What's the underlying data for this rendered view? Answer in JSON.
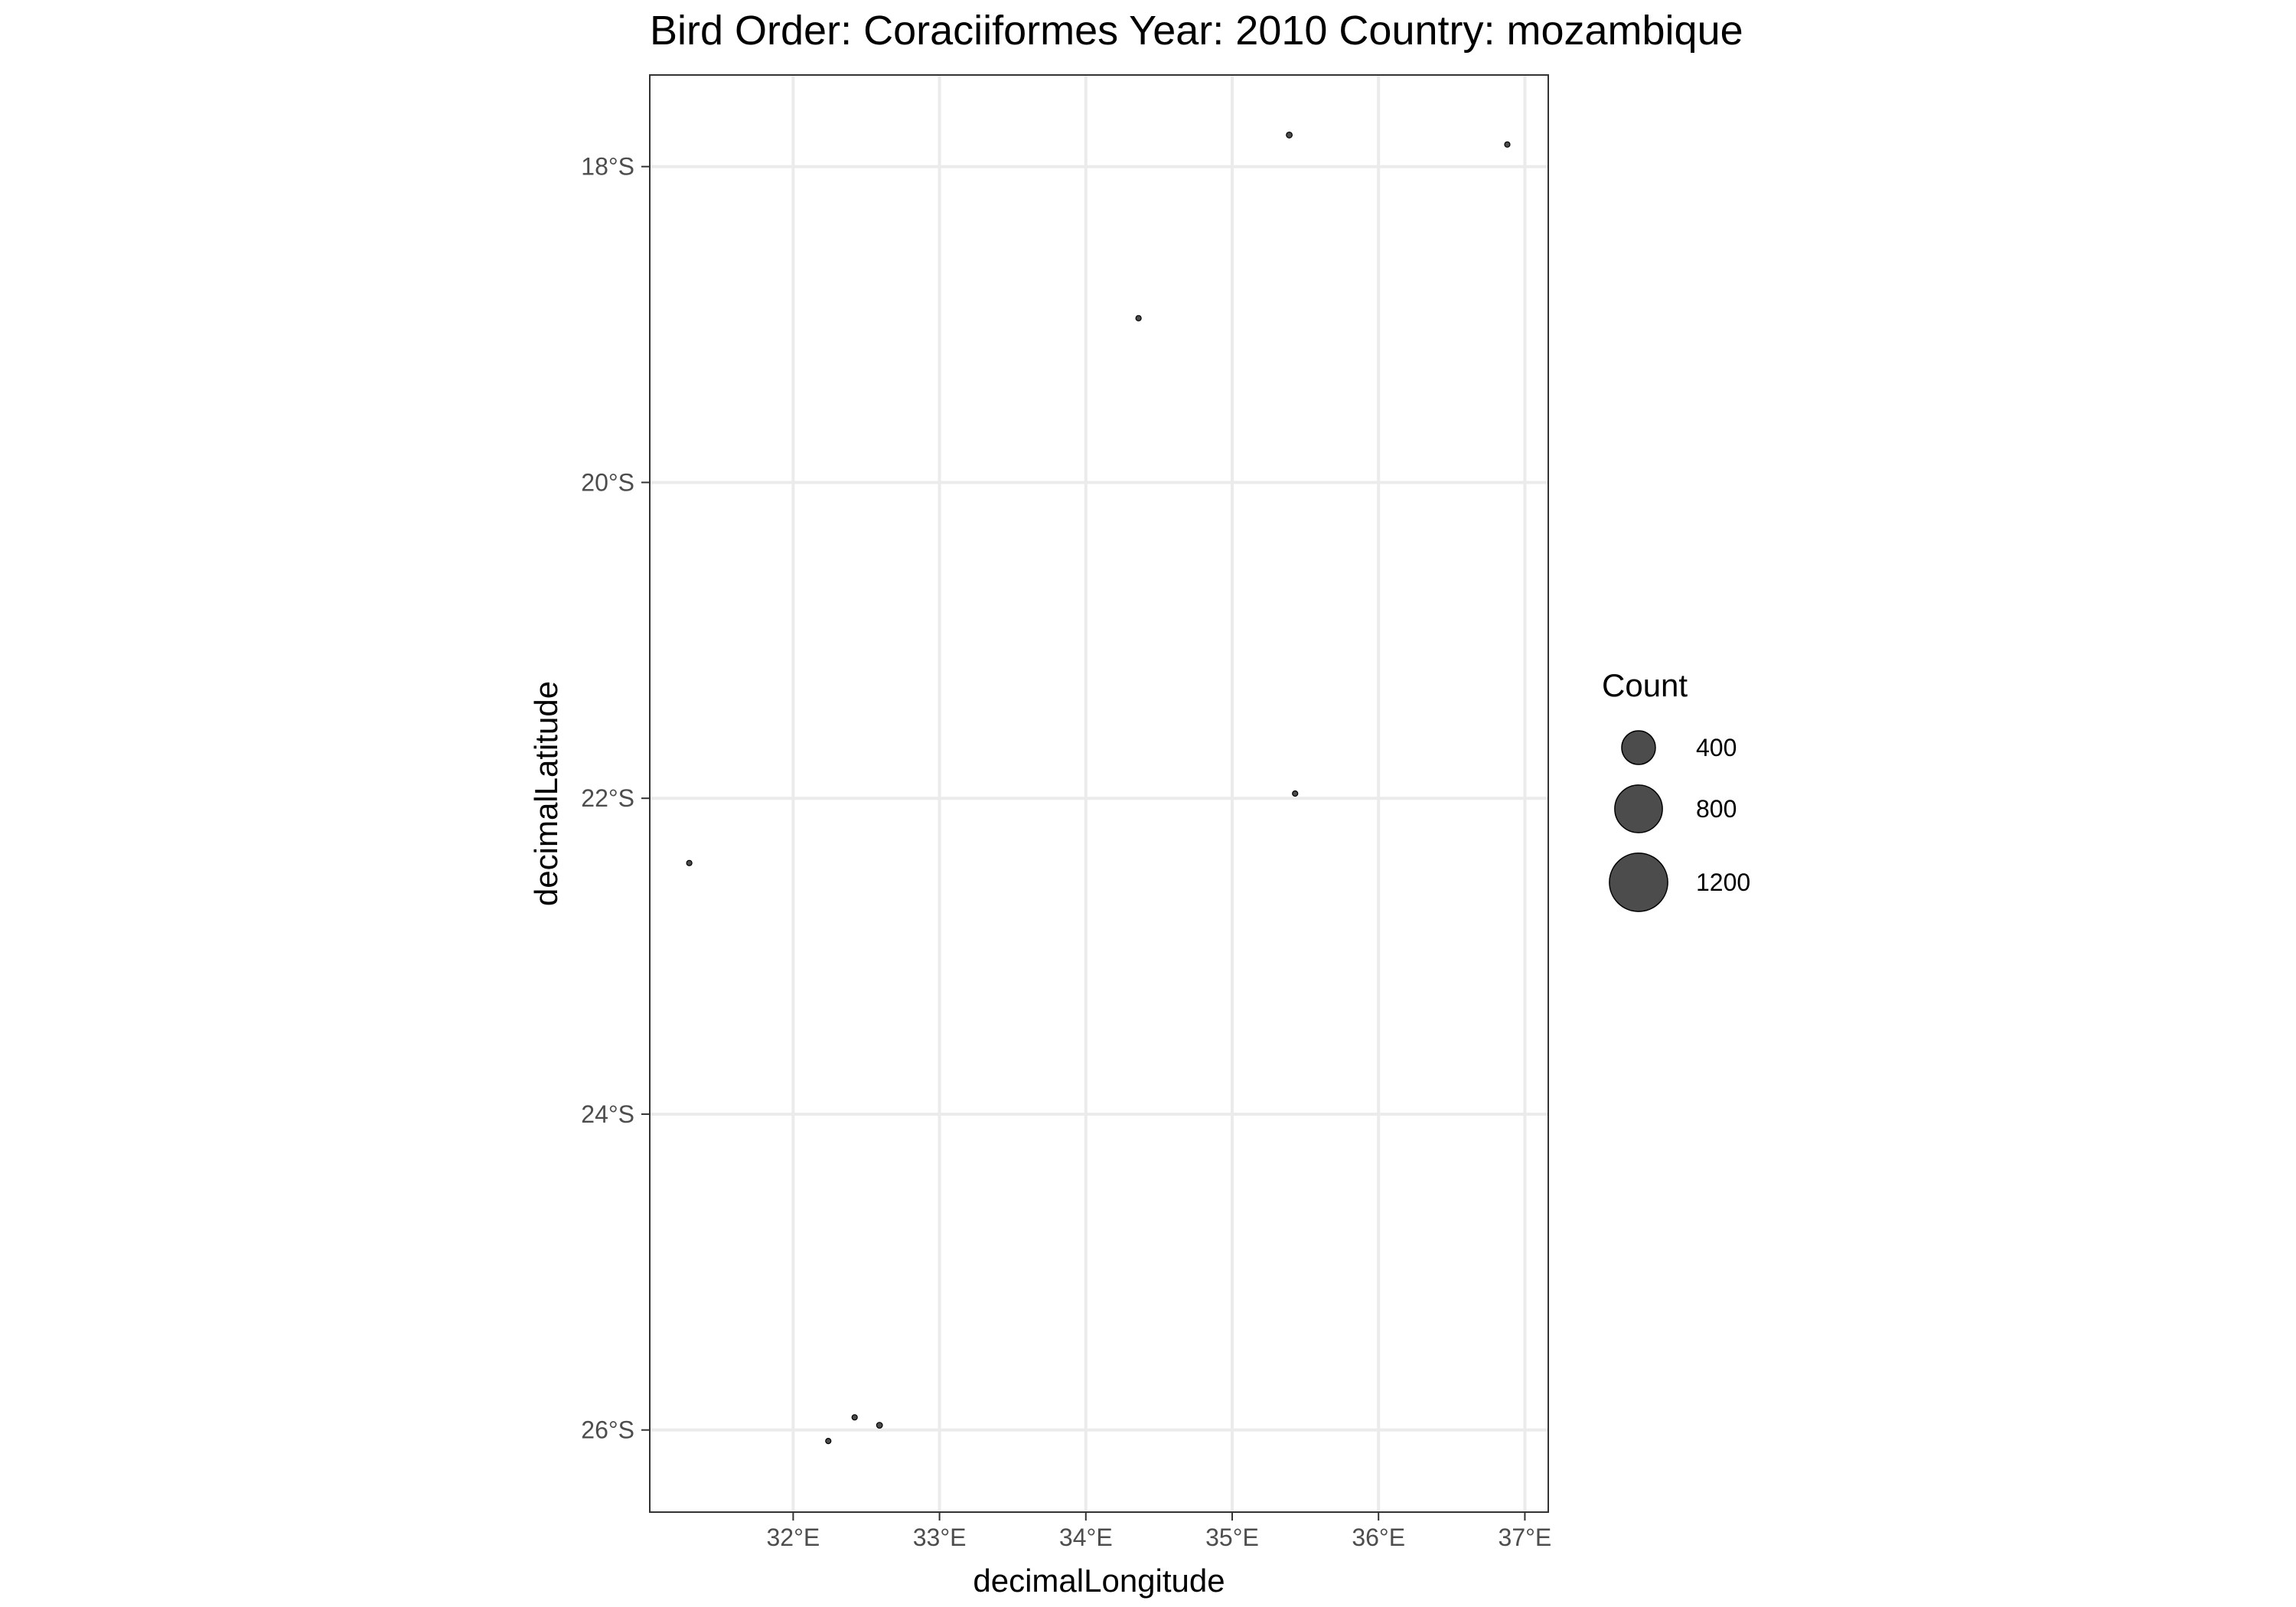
{
  "chart_data": {
    "type": "scatter",
    "title": "Bird Order: Coraciiformes Year: 2010 Country: mozambique",
    "xlabel": "decimalLongitude",
    "ylabel": "decimalLatitude",
    "xlim": [
      31.02,
      37.16
    ],
    "ylim": [
      -26.52,
      -17.42
    ],
    "x_ticks": [
      {
        "value": 32,
        "label": "32°E"
      },
      {
        "value": 33,
        "label": "33°E"
      },
      {
        "value": 34,
        "label": "34°E"
      },
      {
        "value": 35,
        "label": "35°E"
      },
      {
        "value": 36,
        "label": "36°E"
      },
      {
        "value": 37,
        "label": "37°E"
      }
    ],
    "y_ticks": [
      {
        "value": -18,
        "label": "18°S"
      },
      {
        "value": -20,
        "label": "20°S"
      },
      {
        "value": -22,
        "label": "22°S"
      },
      {
        "value": -24,
        "label": "24°S"
      },
      {
        "value": -26,
        "label": "26°S"
      }
    ],
    "grid": true,
    "legend": {
      "title": "Count",
      "placement": "right",
      "entries": [
        {
          "label": "400",
          "value": 400
        },
        {
          "label": "800",
          "value": 800
        },
        {
          "label": "1200",
          "value": 1200
        }
      ]
    },
    "points": [
      {
        "x": 35.39,
        "y": -17.8,
        "count": 12
      },
      {
        "x": 36.88,
        "y": -17.86,
        "count": 8
      },
      {
        "x": 34.36,
        "y": -18.96,
        "count": 10
      },
      {
        "x": 35.43,
        "y": -21.97,
        "count": 7
      },
      {
        "x": 31.29,
        "y": -22.41,
        "count": 7
      },
      {
        "x": 32.42,
        "y": -25.92,
        "count": 8
      },
      {
        "x": 32.59,
        "y": -25.97,
        "count": 12
      },
      {
        "x": 32.24,
        "y": -26.07,
        "count": 10
      }
    ],
    "point_color": "#000000",
    "point_opacity": 0.7
  }
}
